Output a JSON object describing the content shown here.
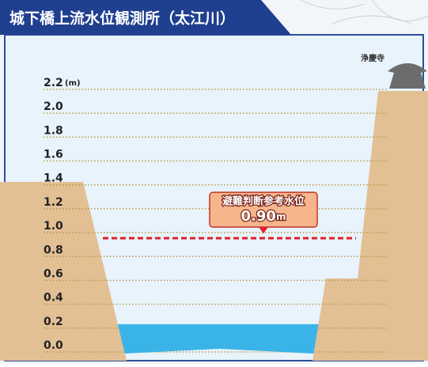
{
  "chart_data": {
    "type": "water-level",
    "title": "城下橋上流水位観測所（太江川）",
    "y_unit": "(m)",
    "landmark": "浄慶寺",
    "ylim": [
      0,
      2.2
    ],
    "yticks": [
      {
        "value": 0,
        "label": "0.0"
      },
      {
        "value": 0.2,
        "label": "0.2"
      },
      {
        "value": 0.4,
        "label": "0.4"
      },
      {
        "value": 0.6,
        "label": "0.6"
      },
      {
        "value": 0.8,
        "label": "0.8"
      },
      {
        "value": 1,
        "label": "1.0"
      },
      {
        "value": 1.2,
        "label": "1.2"
      },
      {
        "value": 1.4,
        "label": "1.4"
      },
      {
        "value": 1.6,
        "label": "1.6"
      },
      {
        "value": 1.8,
        "label": "1.8"
      },
      {
        "value": 2,
        "label": "2.0"
      },
      {
        "value": 2.2,
        "label": "2.2"
      }
    ],
    "water_level": 0.18,
    "water_color": "#3ab4e6",
    "reference": {
      "name": "避難判断参考水位",
      "value": 0.9,
      "value_label": "0.90",
      "unit": "m",
      "color": "#e0202a"
    }
  }
}
